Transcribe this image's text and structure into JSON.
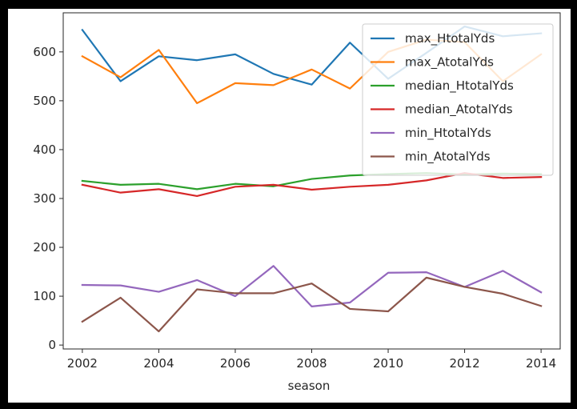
{
  "chart_data": {
    "type": "line",
    "title": "",
    "xlabel": "season",
    "ylabel": "",
    "x": [
      2002,
      2003,
      2004,
      2005,
      2006,
      2007,
      2008,
      2009,
      2010,
      2011,
      2012,
      2013,
      2014
    ],
    "xlim": [
      2001.5,
      2014.5
    ],
    "ylim": [
      -8,
      680
    ],
    "xticks": [
      "2002",
      "2004",
      "2006",
      "2008",
      "2010",
      "2012",
      "2014"
    ],
    "yticks": [
      "0",
      "100",
      "200",
      "300",
      "400",
      "500",
      "600"
    ],
    "grid": false,
    "legend_position": "top-right",
    "series": [
      {
        "name": "max_HtotalYds",
        "color": "#1f77b4",
        "values": [
          645,
          540,
          591,
          583,
          595,
          555,
          533,
          619,
          545,
          598,
          652,
          632,
          638
        ]
      },
      {
        "name": "max_AtotalYds",
        "color": "#ff7f0e",
        "values": [
          591,
          548,
          604,
          495,
          536,
          532,
          564,
          525,
          600,
          625,
          620,
          540,
          595
        ]
      },
      {
        "name": "median_HtotalYds",
        "color": "#2ca02c",
        "values": [
          336,
          328,
          330,
          319,
          330,
          325,
          340,
          347,
          350,
          352,
          349,
          351,
          350
        ]
      },
      {
        "name": "median_AtotalYds",
        "color": "#d62728",
        "values": [
          328,
          312,
          319,
          305,
          324,
          328,
          318,
          324,
          328,
          337,
          352,
          342,
          344
        ]
      },
      {
        "name": "min_HtotalYds",
        "color": "#9467bd",
        "values": [
          123,
          122,
          109,
          133,
          100,
          162,
          79,
          87,
          148,
          149,
          119,
          152,
          108
        ]
      },
      {
        "name": "min_AtotalYds",
        "color": "#8c564b",
        "values": [
          48,
          97,
          28,
          114,
          106,
          106,
          126,
          74,
          69,
          138,
          119,
          105,
          80
        ]
      }
    ]
  }
}
